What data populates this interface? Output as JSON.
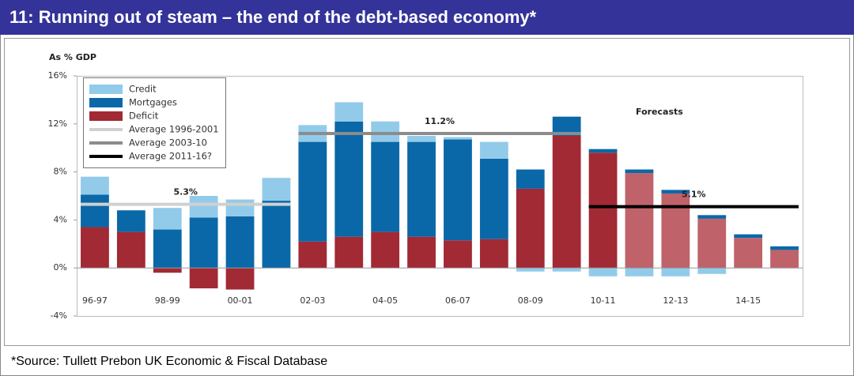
{
  "chart_data": {
    "type": "stacked_bar",
    "title": "11: Running out of steam – the end of the debt-based economy*",
    "y_axis_label": "As % GDP",
    "annotation": "Forecasts",
    "footnote": "*Source: Tullett Prebon UK Economic & Fiscal Database",
    "categories": [
      "96-97",
      null,
      "98-99",
      null,
      "00-01",
      null,
      "02-03",
      null,
      "04-05",
      null,
      "06-07",
      null,
      "08-09",
      null,
      "10-11",
      null,
      "12-13",
      null,
      "14-15",
      null
    ],
    "series": [
      {
        "name": "Deficit",
        "color": "#a12a35",
        "colors": [
          "#a12a35",
          "#a12a35",
          "#a12a35",
          "#a12a35",
          "#a12a35",
          "#a12a35",
          "#a12a35",
          "#a12a35",
          "#a12a35",
          "#a12a35",
          "#a12a35",
          "#a12a35",
          "#a12a35",
          "#a12a35",
          "#a12a35",
          "#c0626a",
          "#c0626a",
          "#c0626a",
          "#c0626a",
          "#c0626a"
        ],
        "values": [
          3.4,
          3.0,
          -0.4,
          -1.7,
          -1.8,
          0,
          2.2,
          2.6,
          3.0,
          2.6,
          2.3,
          2.4,
          6.6,
          11.0,
          9.6,
          7.9,
          6.2,
          4.1,
          2.5,
          1.5
        ]
      },
      {
        "name": "Mortgages",
        "color": "#0a68a8",
        "values": [
          2.7,
          1.8,
          3.2,
          4.2,
          4.3,
          5.6,
          8.3,
          9.6,
          7.5,
          7.9,
          8.4,
          6.7,
          1.6,
          1.6,
          0.3,
          0.3,
          0.3,
          0.3,
          0.3,
          0.3
        ]
      },
      {
        "name": "Credit",
        "color": "#92cbe9",
        "values": [
          1.5,
          0,
          1.8,
          1.8,
          1.4,
          1.9,
          1.4,
          1.6,
          1.7,
          0.5,
          0.2,
          1.4,
          -0.3,
          -0.3,
          -0.7,
          -0.7,
          -0.7,
          -0.5,
          0,
          0
        ]
      }
    ],
    "legend_order": [
      2,
      1,
      0
    ],
    "reference_lines": [
      {
        "name": "Average 1996-2001",
        "color": "#d0d0d0",
        "value": 5.3,
        "label": "5.3%",
        "start": 0,
        "end": 5
      },
      {
        "name": "Average 2003-10",
        "color": "#8c8c8c",
        "value": 11.2,
        "label": "11.2%",
        "start": 6,
        "end": 13
      },
      {
        "name": "Average 2011-16?",
        "color": "#000000",
        "value": 5.1,
        "label": "5.1%",
        "start": 14,
        "end": 19
      }
    ],
    "ylim": [
      -4,
      16
    ],
    "yticks": [
      {
        "value": -4,
        "label": "-4%"
      },
      {
        "value": 0,
        "label": "0%"
      },
      {
        "value": 4,
        "label": "4%"
      },
      {
        "value": 8,
        "label": "8%"
      },
      {
        "value": 12,
        "label": "12%"
      },
      {
        "value": 16,
        "label": "16%"
      }
    ]
  }
}
